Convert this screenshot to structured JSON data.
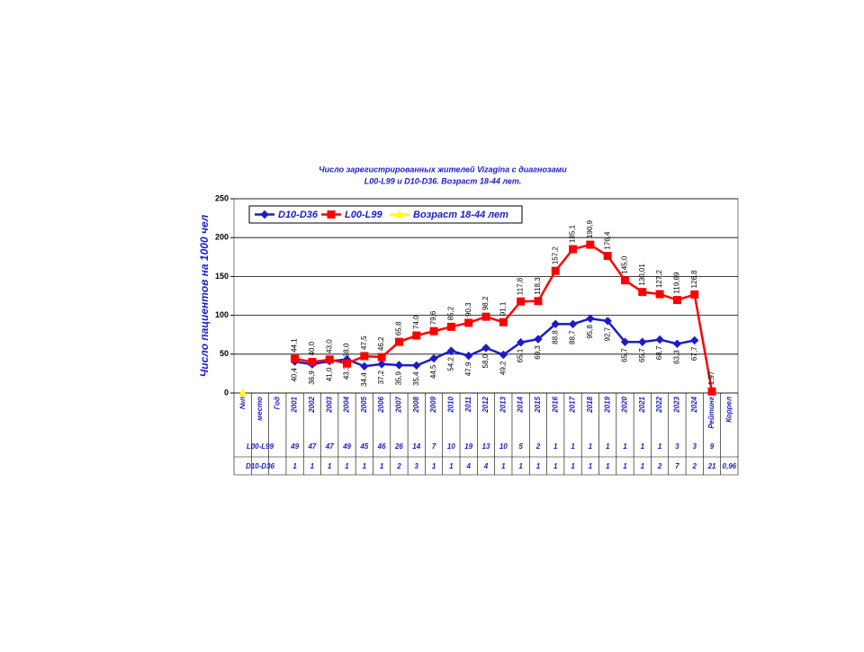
{
  "chart_data": {
    "type": "line",
    "title": [
      "Число зарегистрированных жителей Vizagina с диагнозами",
      "L00-L99 и D10-D36. Возраст 18-44 лет."
    ],
    "y_label": "Число пациентов на 1000 чел",
    "categories": [
      "№п",
      "место",
      "Год",
      "2001",
      "2002",
      "2003",
      "2004",
      "2005",
      "2006",
      "2007",
      "2008",
      "2009",
      "2010",
      "2011",
      "2012",
      "2013",
      "2014",
      "2015",
      "2016",
      "2017",
      "2018",
      "2019",
      "2020",
      "2021",
      "2022",
      "2023",
      "2024",
      "Рейтинг",
      "Коррел"
    ],
    "ylim": [
      0,
      250
    ],
    "yticks": [
      0,
      50,
      100,
      150,
      200,
      250
    ],
    "grid": true,
    "legend": "top-left",
    "series": [
      {
        "name": "D10-D36",
        "color": "#1c1cc8",
        "marker": "diamond",
        "values": [
          null,
          null,
          null,
          40.4,
          36.9,
          41.0,
          43.3,
          34.4,
          37.2,
          35.9,
          35.4,
          44.5,
          54.2,
          47.9,
          58.0,
          49.2,
          65.1,
          69.3,
          88.8,
          88.7,
          95.8,
          92.7,
          65.7,
          65.7,
          68.7,
          63.3,
          67.7,
          null,
          null
        ],
        "value_labels": [
          null,
          null,
          null,
          "40,4",
          "36,9",
          "41,0",
          "43,3",
          "34,4",
          "37,2",
          "35,9",
          "35,4",
          "44,5",
          "54,2",
          "47,9",
          "58,0",
          "49,2",
          "65,1",
          "69,3",
          "88,8",
          "88,7",
          "95,8",
          "92,7",
          "65,7",
          "65,7",
          "68,7",
          "63,3",
          "67,7",
          null,
          null
        ]
      },
      {
        "name": "L00-L99",
        "color": "#ff0000",
        "marker": "square",
        "values": [
          null,
          null,
          null,
          44.1,
          40.0,
          43.0,
          38.0,
          47.5,
          46.2,
          65.8,
          74.0,
          79.6,
          85.2,
          90.3,
          98.2,
          91.1,
          117.8,
          118.3,
          157.2,
          185.1,
          190.9,
          176.4,
          145.0,
          130.01,
          127.2,
          119.69,
          126.8,
          1.97,
          null
        ],
        "value_labels": [
          null,
          null,
          null,
          "44,1",
          "40,0",
          "43,0",
          "38,0",
          "47,5",
          "46,2",
          "65,8",
          "74,0",
          "79,6",
          "85,2",
          "90,3",
          "98,2",
          "91,1",
          "117,8",
          "118,3",
          "157,2",
          "185,1",
          "190,9",
          "176,4",
          "145,0",
          "130,01",
          "127,2",
          "119,69",
          "126,8",
          "1,97",
          null
        ]
      },
      {
        "name": "Возраст 18-44 лет",
        "color": "#ffff00",
        "marker": "triangle",
        "values": [
          0,
          null,
          null,
          null,
          null,
          null,
          null,
          null,
          null,
          null,
          null,
          null,
          null,
          null,
          null,
          null,
          null,
          null,
          null,
          null,
          null,
          null,
          null,
          null,
          null,
          null,
          null,
          null,
          null
        ]
      }
    ],
    "table": [
      {
        "name": "L00-L99",
        "cells": [
          "49",
          "47",
          "47",
          "49",
          "45",
          "46",
          "26",
          "14",
          "7",
          "10",
          "19",
          "13",
          "10",
          "5",
          "2",
          "1",
          "1",
          "1",
          "1",
          "1",
          "1",
          "1",
          "3",
          "3",
          "9",
          null
        ]
      },
      {
        "name": "D10-D36",
        "cells": [
          "1",
          "1",
          "1",
          "1",
          "1",
          "1",
          "2",
          "3",
          "1",
          "1",
          "4",
          "4",
          "1",
          "1",
          "1",
          "1",
          "1",
          "1",
          "1",
          "1",
          "1",
          "2",
          "7",
          "2",
          "21",
          "0,96"
        ]
      }
    ]
  }
}
